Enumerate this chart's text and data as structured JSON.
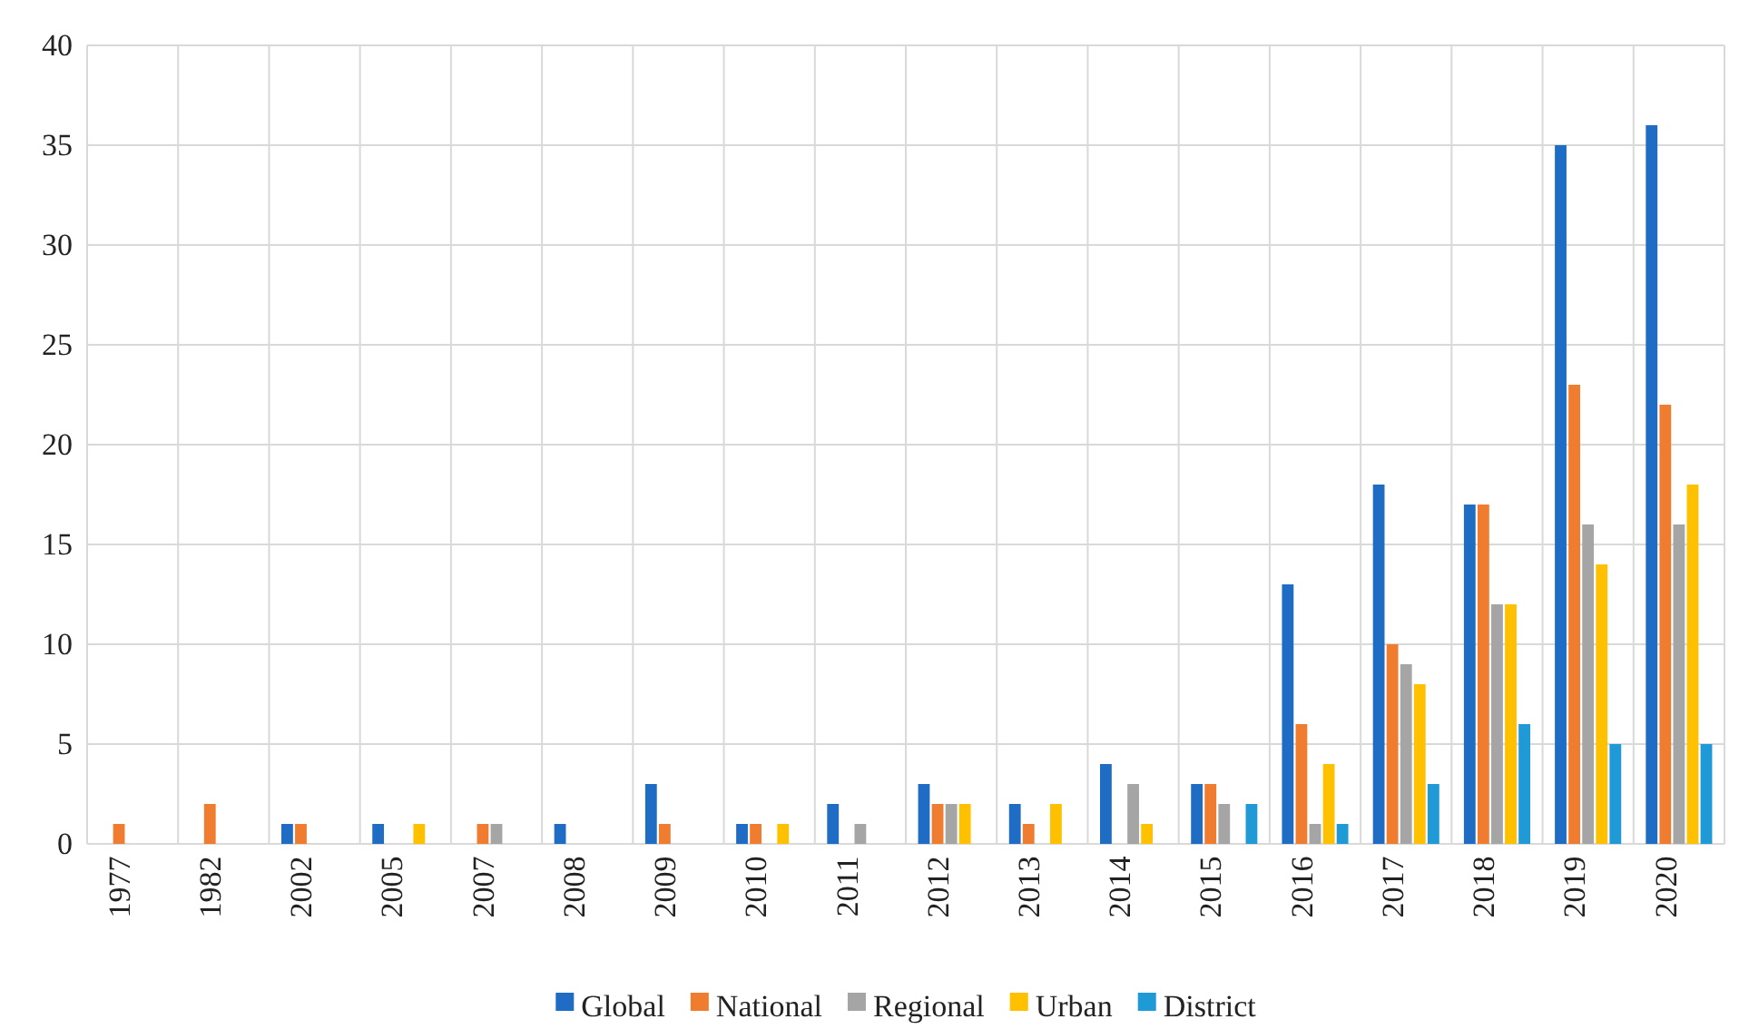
{
  "chart_data": {
    "type": "bar",
    "categories": [
      "1977",
      "1982",
      "2002",
      "2005",
      "2007",
      "2008",
      "2009",
      "2010",
      "2011",
      "2012",
      "2013",
      "2014",
      "2015",
      "2016",
      "2017",
      "2018",
      "2019",
      "2020"
    ],
    "series": [
      {
        "name": "Global",
        "color": "#1f6cc4",
        "values": [
          0,
          0,
          1,
          1,
          0,
          1,
          3,
          1,
          2,
          3,
          2,
          4,
          3,
          13,
          18,
          17,
          35,
          36
        ]
      },
      {
        "name": "National",
        "color": "#f07c30",
        "values": [
          1,
          2,
          1,
          0,
          1,
          0,
          1,
          1,
          0,
          2,
          1,
          0,
          3,
          6,
          10,
          17,
          23,
          22
        ]
      },
      {
        "name": "Regional",
        "color": "#a5a5a5",
        "values": [
          0,
          0,
          0,
          0,
          1,
          0,
          0,
          0,
          1,
          2,
          0,
          3,
          2,
          1,
          9,
          12,
          16,
          16
        ]
      },
      {
        "name": "Urban",
        "color": "#ffc000",
        "values": [
          0,
          0,
          0,
          1,
          0,
          0,
          0,
          1,
          0,
          2,
          2,
          1,
          0,
          4,
          8,
          12,
          14,
          18
        ]
      },
      {
        "name": "District",
        "color": "#1f9ad6",
        "values": [
          0,
          0,
          0,
          0,
          0,
          0,
          0,
          0,
          0,
          0,
          0,
          0,
          2,
          1,
          3,
          6,
          5,
          5
        ]
      }
    ],
    "ylim": [
      0,
      40
    ],
    "yticks": [
      0,
      5,
      10,
      15,
      20,
      25,
      30,
      35,
      40
    ],
    "grid": true,
    "legend": "bottom"
  }
}
